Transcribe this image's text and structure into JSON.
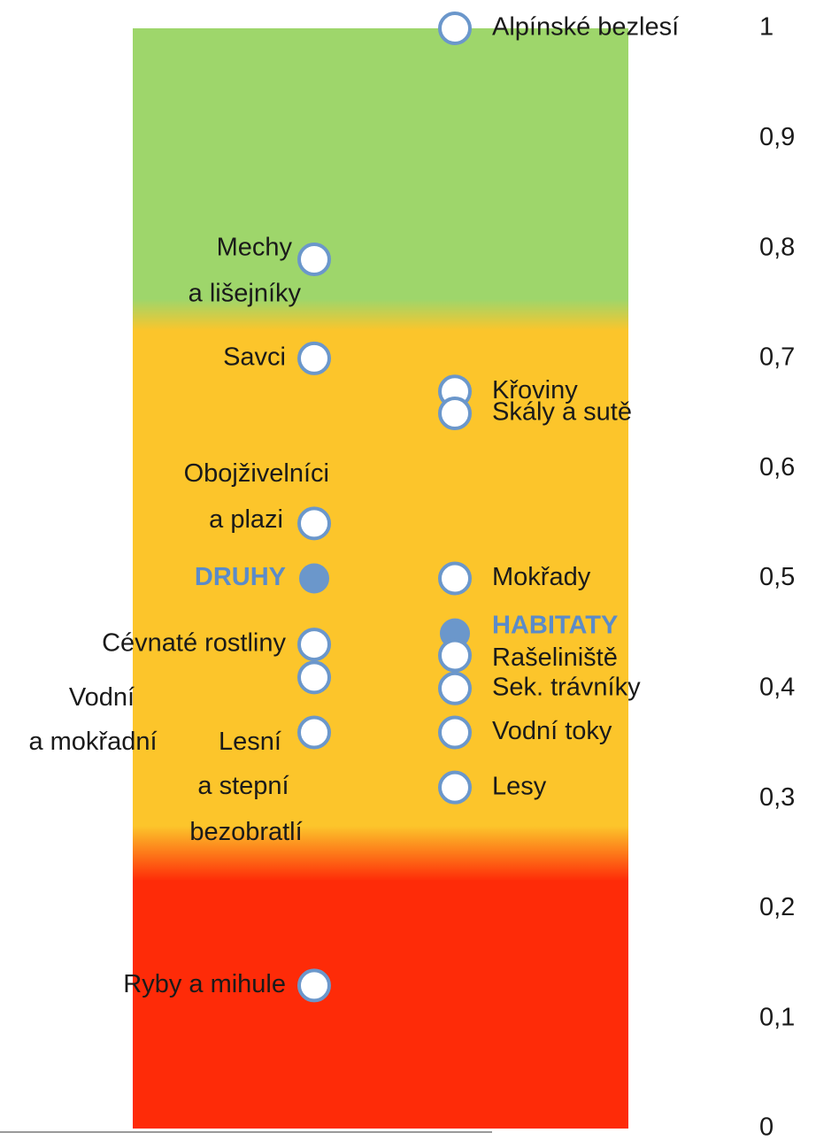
{
  "chart_data": {
    "type": "dot",
    "ylim": [
      0,
      1
    ],
    "yticks": [
      0,
      {
        "value": 0.1,
        "label": "0,1"
      },
      {
        "value": 0.2,
        "label": "0,2"
      },
      {
        "value": 0.3,
        "label": "0,3"
      },
      {
        "value": 0.4,
        "label": "0,4"
      },
      {
        "value": 0.5,
        "label": "0,5"
      },
      {
        "value": 0.6,
        "label": "0,6"
      },
      {
        "value": 0.7,
        "label": "0,7"
      },
      {
        "value": 0.8,
        "label": "0,8"
      },
      {
        "value": 0.9,
        "label": "0,9"
      },
      1
    ],
    "bands": [
      {
        "from": 0.75,
        "to": 1,
        "color": "#9ed66b"
      },
      {
        "from": 0.25,
        "to": 0.75,
        "color": "#fcc52b"
      },
      {
        "from": 0,
        "to": 0.25,
        "color": "#fe2b08"
      }
    ],
    "marker_color": "#6b97cb",
    "columns": [
      {
        "side": "left",
        "points": [
          {
            "label": [
              "Mechy",
              "a lišejníky"
            ],
            "value": 0.79
          },
          {
            "label": [
              "Savci"
            ],
            "value": 0.7
          },
          {
            "label": [
              "Obojživelníci",
              "a plazi"
            ],
            "value": 0.55
          },
          {
            "label": [
              "DRUHY"
            ],
            "value": 0.5,
            "highlight": true
          },
          {
            "label": [
              "Cévnaté rostliny"
            ],
            "value": 0.44
          },
          {
            "label": [
              "Vodní",
              "a mokřadní"
            ],
            "value": 0.41
          },
          {
            "label": [
              "Lesní",
              "a stepní",
              "bezobratlí"
            ],
            "value": 0.36
          },
          {
            "label": [
              "Ryby a mihule"
            ],
            "value": 0.13
          }
        ]
      },
      {
        "side": "right",
        "points": [
          {
            "label": [
              "Alpínské bezlesí"
            ],
            "value": 1
          },
          {
            "label": [
              "Křoviny"
            ],
            "value": 0.67
          },
          {
            "label": [
              "Skály a sutě"
            ],
            "value": 0.65
          },
          {
            "label": [
              "Mokřady"
            ],
            "value": 0.5
          },
          {
            "label": [
              "HABITATY"
            ],
            "value": 0.45,
            "highlight": true
          },
          {
            "label": [
              "Rašeliniště"
            ],
            "value": 0.43
          },
          {
            "label": [
              "Sek. trávníky"
            ],
            "value": 0.4
          },
          {
            "label": [
              "Vodní toky"
            ],
            "value": 0.36
          },
          {
            "label": [
              "Lesy"
            ],
            "value": 0.31
          }
        ]
      }
    ]
  }
}
